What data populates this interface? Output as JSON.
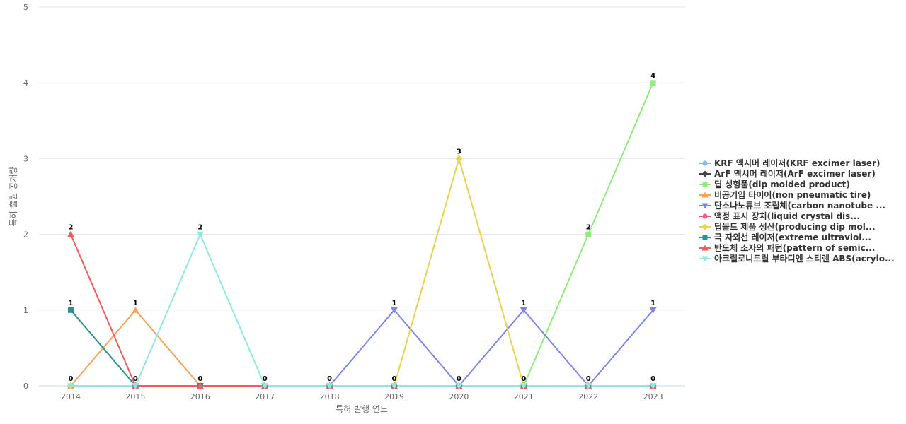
{
  "chart_data": {
    "type": "line",
    "title": "",
    "xlabel": "특허 발행 연도",
    "ylabel": "특허 출원 공개량",
    "categories": [
      "2014",
      "2015",
      "2016",
      "2017",
      "2018",
      "2019",
      "2020",
      "2021",
      "2022",
      "2023"
    ],
    "ylim": [
      0,
      5
    ],
    "yticks": [
      0,
      1,
      2,
      3,
      4,
      5
    ],
    "grid": true,
    "legend_position": "right",
    "series": [
      {
        "name": "KRF 엑시머 레이저(KRF excimer laser)",
        "color": "#7cb5ec",
        "marker": "circle",
        "values": [
          0,
          0,
          0,
          0,
          0,
          0,
          0,
          0,
          0,
          0
        ]
      },
      {
        "name": "ArF 엑시머 레이저(ArF excimer laser)",
        "color": "#434348",
        "marker": "diamond",
        "values": [
          0,
          0,
          0,
          0,
          0,
          0,
          0,
          0,
          0,
          0
        ]
      },
      {
        "name": "딥 성형품(dip molded product)",
        "color": "#90ed7d",
        "marker": "square",
        "values": [
          0,
          0,
          0,
          0,
          0,
          0,
          0,
          0,
          2,
          4
        ]
      },
      {
        "name": "비공기입 타이어(non pneumatic tire)",
        "color": "#f7a35c",
        "marker": "triangle",
        "values": [
          0,
          1,
          0,
          0,
          0,
          0,
          0,
          0,
          0,
          0
        ]
      },
      {
        "name": "탄소나노튜브 조립체(carbon nanotube ...",
        "color": "#8085e9",
        "marker": "triangle-down",
        "values": [
          0,
          0,
          0,
          0,
          0,
          1,
          0,
          1,
          0,
          1
        ]
      },
      {
        "name": "액정 표시 장치(liquid crystal dis...",
        "color": "#f15c80",
        "marker": "circle",
        "values": [
          0,
          0,
          0,
          0,
          0,
          0,
          0,
          0,
          0,
          0
        ]
      },
      {
        "name": "딥몰드 제품 생산(producing dip mol...",
        "color": "#e4d354",
        "marker": "diamond",
        "values": [
          0,
          0,
          0,
          0,
          0,
          0,
          3,
          0,
          0,
          0
        ]
      },
      {
        "name": "극 자외선 레이저(extreme ultraviol...",
        "color": "#2b908f",
        "marker": "square",
        "values": [
          1,
          0,
          0,
          0,
          0,
          0,
          0,
          0,
          0,
          0
        ]
      },
      {
        "name": "반도체 소자의 패턴(pattern of semic...",
        "color": "#f45b5b",
        "marker": "triangle",
        "values": [
          2,
          0,
          0,
          0,
          0,
          0,
          0,
          0,
          0,
          0
        ]
      },
      {
        "name": "아크릴로니트릴 부타디엔 스티렌 ABS(acrylo...",
        "color": "#91e8e1",
        "marker": "triangle-down",
        "values": [
          0,
          0,
          2,
          0,
          0,
          0,
          0,
          0,
          0,
          0
        ]
      }
    ],
    "data_labels": [
      {
        "category": "2014",
        "values": [
          "2",
          "1",
          "0"
        ]
      },
      {
        "category": "2015",
        "values": [
          "1",
          "0"
        ]
      },
      {
        "category": "2016",
        "values": [
          "2",
          "0"
        ]
      },
      {
        "category": "2017",
        "values": [
          "0"
        ]
      },
      {
        "category": "2018",
        "values": [
          "0"
        ]
      },
      {
        "category": "2019",
        "values": [
          "1",
          "0"
        ]
      },
      {
        "category": "2020",
        "values": [
          "3",
          "0"
        ]
      },
      {
        "category": "2021",
        "values": [
          "1",
          "0"
        ]
      },
      {
        "category": "2022",
        "values": [
          "2",
          "0"
        ]
      },
      {
        "category": "2023",
        "values": [
          "4",
          "1",
          "0"
        ]
      }
    ]
  }
}
